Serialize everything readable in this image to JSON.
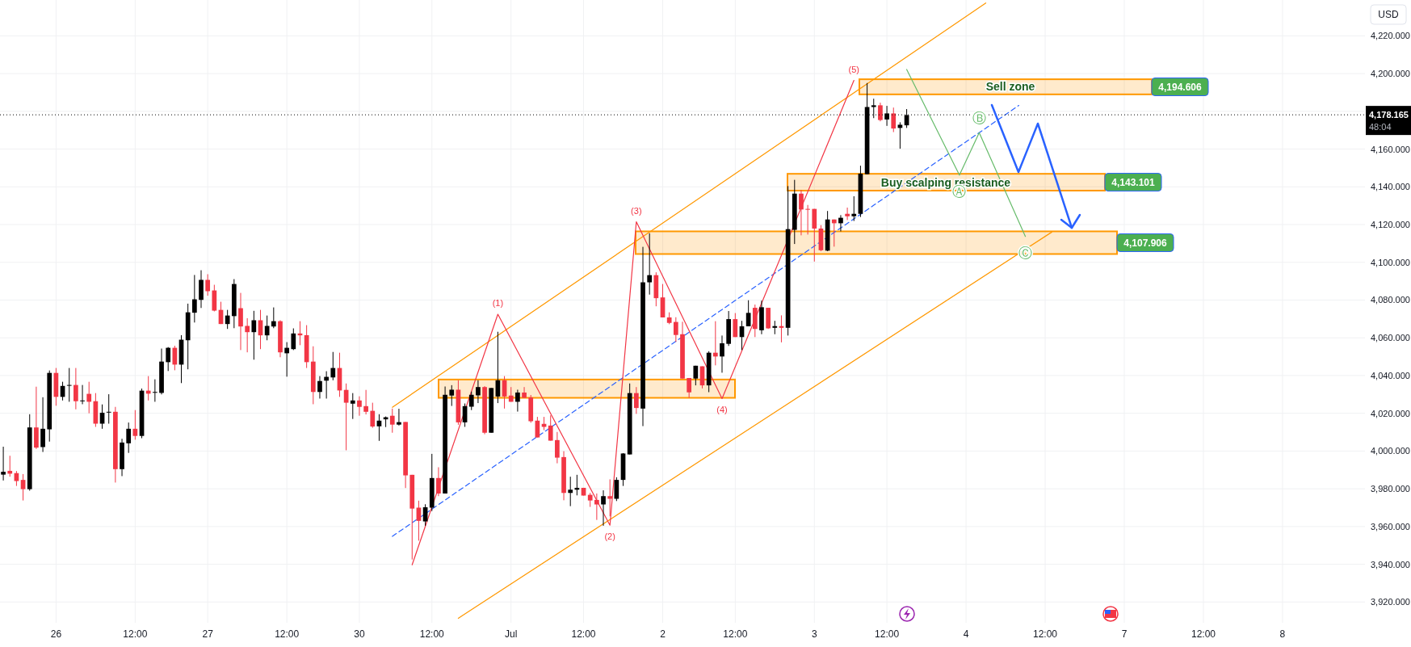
{
  "chart_data": {
    "type": "candlestick",
    "categories": [
      null,
      null,
      null,
      null,
      null,
      null,
      null,
      null,
      "26",
      null,
      null,
      null,
      null,
      null,
      null,
      null,
      null,
      null,
      null,
      null,
      "12:00",
      null,
      null,
      null,
      null,
      null,
      null,
      null,
      null,
      null,
      null,
      "27",
      null,
      null,
      null,
      null,
      null,
      null,
      null,
      null,
      null,
      null,
      null,
      "12:00",
      null,
      null,
      null,
      null,
      null,
      null,
      null,
      null,
      null,
      null,
      "30",
      null,
      null,
      null,
      null,
      null,
      null,
      null,
      null,
      null,
      null,
      "12:00",
      null,
      null,
      null,
      null,
      null,
      null,
      null,
      null,
      null,
      null,
      null,
      "Jul",
      null,
      null,
      null,
      null,
      null,
      null,
      null,
      null,
      null,
      null,
      "12:00",
      null,
      null,
      null,
      null,
      null,
      null,
      null,
      null,
      null,
      null,
      null,
      "2",
      null,
      null,
      null,
      null,
      null,
      null,
      null,
      null,
      null,
      null,
      "12:00",
      null,
      null,
      null,
      null,
      null,
      null,
      null,
      null,
      null,
      null,
      null,
      "3",
      null,
      null,
      null,
      null,
      null,
      null,
      null,
      null,
      null,
      null,
      "12:00",
      null,
      null,
      null,
      null,
      null,
      null,
      null,
      null,
      null,
      null,
      null,
      "4",
      null,
      null,
      null,
      null,
      null,
      null,
      null,
      null,
      null,
      null,
      null,
      "12:00",
      null,
      null,
      null,
      null,
      null,
      null,
      null,
      null,
      null,
      null,
      null,
      "7",
      null,
      null,
      null,
      null,
      null,
      null,
      null,
      null,
      null,
      null,
      null,
      "12:00",
      null,
      null,
      null,
      null,
      null,
      null,
      null,
      null,
      null,
      null,
      null,
      "8",
      null,
      null,
      null,
      null,
      null,
      null,
      null,
      null,
      null,
      null,
      null,
      null
    ],
    "ohlc": [
      [
        3987.5,
        4002.3,
        3984.4,
        3989.0
      ],
      [
        3989.5,
        3997.5,
        3986.4,
        3988.0
      ],
      [
        3988.3,
        3989.4,
        3981.5,
        3984.1
      ],
      [
        3984.7,
        3987.8,
        3973.8,
        3979.8
      ],
      [
        3979.8,
        4019.5,
        3979.0,
        4012.5
      ],
      [
        4012.5,
        4034.1,
        4001.1,
        4001.8
      ],
      [
        4002.1,
        4028.5,
        3999.5,
        4011.8
      ],
      [
        4011.5,
        4042.7,
        4005.0,
        4041.4
      ],
      [
        4041.4,
        4044.0,
        4024.0,
        4028.7
      ],
      [
        4028.7,
        4036.7,
        4026.8,
        4034.5
      ],
      [
        4034.7,
        4044.0,
        4026.1,
        4035.0
      ],
      [
        4035.0,
        4044.0,
        4022.1,
        4026.4
      ],
      [
        4026.6,
        4035.0,
        4024.8,
        4026.8
      ],
      [
        4030.3,
        4036.7,
        4020.0,
        4026.1
      ],
      [
        4026.4,
        4030.7,
        4012.8,
        4014.5
      ],
      [
        4014.5,
        4024.7,
        4011.8,
        4020.3
      ],
      [
        4020.6,
        4030.1,
        4014.5,
        4020.8
      ],
      [
        4020.8,
        4023.4,
        3983.3,
        3990.4
      ],
      [
        3990.4,
        4006.5,
        3986.7,
        4004.5
      ],
      [
        4004.1,
        4015.1,
        3999.0,
        4011.8
      ],
      [
        4011.8,
        4021.7,
        4006.0,
        4008.0
      ],
      [
        4008.0,
        4033.1,
        4006.8,
        4032.0
      ],
      [
        4032.0,
        4039.7,
        4026.8,
        4030.4
      ],
      [
        4031.0,
        4038.0,
        4026.1,
        4031.3
      ],
      [
        4030.8,
        4054.3,
        4030.0,
        4047.4
      ],
      [
        4047.1,
        4055.1,
        4042.4,
        4054.7
      ],
      [
        4054.7,
        4055.8,
        4042.8,
        4045.8
      ],
      [
        4045.8,
        4061.4,
        4036.0,
        4059.0
      ],
      [
        4058.7,
        4078.1,
        4043.3,
        4073.5
      ],
      [
        4073.3,
        4093.3,
        4068.1,
        4080.4
      ],
      [
        4080.1,
        4095.8,
        4075.8,
        4090.7
      ],
      [
        4090.7,
        4093.7,
        4082.3,
        4084.7
      ],
      [
        4085.1,
        4088.1,
        4074.0,
        4074.4
      ],
      [
        4074.8,
        4079.1,
        4067.3,
        4067.3
      ],
      [
        4067.3,
        4074.8,
        4064.7,
        4071.8
      ],
      [
        4071.5,
        4091.1,
        4065.1,
        4088.5
      ],
      [
        4075.7,
        4083.8,
        4053.5,
        4066.0
      ],
      [
        4066.3,
        4070.4,
        4052.3,
        4063.0
      ],
      [
        4063.0,
        4074.3,
        4048.4,
        4069.3
      ],
      [
        4069.3,
        4074.8,
        4054.0,
        4061.3
      ],
      [
        4061.3,
        4071.8,
        4058.7,
        4066.3
      ],
      [
        4066.0,
        4076.1,
        4065.1,
        4068.8
      ],
      [
        4068.8,
        4069.3,
        4049.7,
        4052.3
      ],
      [
        4051.8,
        4057.7,
        4039.4,
        4054.7
      ],
      [
        4054.0,
        4065.0,
        4053.5,
        4062.3
      ],
      [
        4062.3,
        4068.8,
        4056.1,
        4061.3
      ],
      [
        4061.4,
        4066.7,
        4044.0,
        4047.1
      ],
      [
        4047.4,
        4055.5,
        4024.8,
        4031.3
      ],
      [
        4031.3,
        4039.7,
        4027.8,
        4037.1
      ],
      [
        4037.3,
        4042.3,
        4027.8,
        4039.3
      ],
      [
        4039.0,
        4052.5,
        4037.5,
        4044.0
      ],
      [
        4044.0,
        4052.1,
        4028.7,
        4032.1
      ],
      [
        4032.4,
        4035.8,
        4000.4,
        4025.6
      ],
      [
        4025.1,
        4030.7,
        4017.0,
        4026.8
      ],
      [
        4026.8,
        4029.0,
        4018.7,
        4023.4
      ],
      [
        4023.8,
        4032.4,
        4019.4,
        4020.8
      ],
      [
        4021.3,
        4025.6,
        4012.3,
        4013.0
      ],
      [
        4013.1,
        4019.5,
        4005.4,
        4016.1
      ],
      [
        4016.8,
        4018.3,
        4012.7,
        4017.9
      ],
      [
        4018.7,
        4022.5,
        4009.7,
        4014.0
      ],
      [
        4014.0,
        4022.4,
        4013.5,
        4015.3
      ],
      [
        4015.4,
        4015.4,
        3980.4,
        3987.1
      ],
      [
        3987.4,
        3987.4,
        3942.5,
        3969.5
      ],
      [
        3970.0,
        3973.7,
        3952.5,
        3963.0
      ],
      [
        3962.7,
        3971.8,
        3960.4,
        3970.2
      ],
      [
        3970.0,
        3998.5,
        3968.2,
        3985.7
      ],
      [
        3985.7,
        3991.4,
        3976.1,
        3977.5
      ],
      [
        3977.5,
        4034.2,
        3977.5,
        4029.8
      ],
      [
        4029.4,
        4034.9,
        4023.9,
        4032.5
      ],
      [
        4032.5,
        4037.5,
        4013.9,
        4015.2
      ],
      [
        4015.2,
        4025.2,
        4012.8,
        4023.8
      ],
      [
        4023.5,
        4031.5,
        4021.7,
        4029.8
      ],
      [
        4029.5,
        4037.5,
        4025.4,
        4033.9
      ],
      [
        4033.9,
        4034.4,
        4008.9,
        4009.7
      ],
      [
        4009.7,
        4033.4,
        4009.7,
        4033.4
      ],
      [
        4028.9,
        4063.2,
        4025.4,
        4037.5
      ],
      [
        4037.5,
        4039.7,
        4022.5,
        4028.9
      ],
      [
        4029.4,
        4033.9,
        4026.1,
        4026.1
      ],
      [
        4026.1,
        4032.5,
        4020.9,
        4031.0
      ],
      [
        4031.0,
        4033.9,
        4028.2,
        4028.2
      ],
      [
        4028.4,
        4029.7,
        4015.0,
        4015.8
      ],
      [
        4016.1,
        4018.1,
        4007.2,
        4007.2
      ],
      [
        4014.4,
        4018.1,
        4011.1,
        4012.8
      ],
      [
        4013.5,
        4018.9,
        4005.5,
        4005.5
      ],
      [
        4005.8,
        4010.1,
        3993.5,
        3996.5
      ],
      [
        3996.8,
        3999.9,
        3973.9,
        3977.8
      ],
      [
        3977.8,
        3986.4,
        3970.8,
        3979.5
      ],
      [
        3979.5,
        3987.4,
        3976.5,
        3980.5
      ],
      [
        3980.5,
        3980.5,
        3976.4,
        3976.4
      ],
      [
        3976.8,
        3977.8,
        3970.4,
        3973.8
      ],
      [
        3974.1,
        3977.5,
        3963.5,
        3971.7
      ],
      [
        3971.7,
        3979.2,
        3960.4,
        3976.1
      ],
      [
        3976.1,
        3985.0,
        3965.4,
        3974.7
      ],
      [
        3974.7,
        3986.1,
        3973.5,
        3984.7
      ],
      [
        3984.7,
        3998.9,
        3981.5,
        3998.7
      ],
      [
        3998.2,
        4035.8,
        3998.2,
        4030.7
      ],
      [
        4030.7,
        4033.9,
        4019.7,
        4022.8
      ],
      [
        4022.5,
        4108.2,
        4013.2,
        4089.4
      ],
      [
        4089.4,
        4115.4,
        4082.9,
        4093.2
      ],
      [
        4093.2,
        4094.7,
        4076.7,
        4081.0
      ],
      [
        4081.4,
        4088.5,
        4070.8,
        4070.8
      ],
      [
        4070.8,
        4073.5,
        4067.2,
        4067.9
      ],
      [
        4068.4,
        4070.9,
        4057.8,
        4061.5
      ],
      [
        4061.9,
        4068.5,
        4038.4,
        4038.4
      ],
      [
        4038.7,
        4038.7,
        4028.2,
        4031.1
      ],
      [
        4038.4,
        4045.2,
        4034.8,
        4045.2
      ],
      [
        4044.9,
        4044.9,
        4033.2,
        4034.8
      ],
      [
        4034.8,
        4052.9,
        4031.2,
        4052.1
      ],
      [
        4052.1,
        4068.8,
        4045.4,
        4050.1
      ],
      [
        4050.1,
        4061.2,
        4041.5,
        4057.1
      ],
      [
        4056.8,
        4074.2,
        4055.7,
        4069.9
      ],
      [
        4069.9,
        4073.1,
        4060.4,
        4060.4
      ],
      [
        4060.4,
        4069.0,
        4053.5,
        4066.1
      ],
      [
        4066.1,
        4079.9,
        4066.1,
        4073.2
      ],
      [
        4075.9,
        4077.6,
        4060.4,
        4064.7
      ],
      [
        4064.0,
        4079.7,
        4061.9,
        4076.2
      ],
      [
        4075.9,
        4075.9,
        4064.7,
        4065.0
      ],
      [
        4065.3,
        4069.0,
        4061.9,
        4066.2
      ],
      [
        4066.2,
        4071.9,
        4057.6,
        4065.3
      ],
      [
        4065.3,
        4140.4,
        4061.2,
        4117.6
      ],
      [
        4117.2,
        4143.7,
        4109.7,
        4136.4
      ],
      [
        4136.4,
        4138.3,
        4114.3,
        4128.0
      ],
      [
        4128.3,
        4130.4,
        4114.7,
        4128.0
      ],
      [
        4128.3,
        4128.3,
        4100.4,
        4117.9
      ],
      [
        4117.9,
        4119.7,
        4105.9,
        4106.4
      ],
      [
        4106.2,
        4127.2,
        4105.9,
        4122.7
      ],
      [
        4122.7,
        4122.7,
        4108.3,
        4120.7
      ],
      [
        4120.7,
        4125.0,
        4116.4,
        4123.6
      ],
      [
        4125.7,
        4129.0,
        4122.4,
        4124.4
      ],
      [
        4124.4,
        4135.0,
        4121.9,
        4125.7
      ],
      [
        4125.7,
        4151.2,
        4124.0,
        4147.0
      ],
      [
        4146.7,
        4195.0,
        4146.7,
        4182.3
      ],
      [
        4182.3,
        4186.7,
        4176.4,
        4183.2
      ],
      [
        4183.2,
        4184.6,
        4174.7,
        4175.4
      ],
      [
        4175.7,
        4182.9,
        4172.3,
        4178.9
      ],
      [
        4178.9,
        4182.0,
        4169.0,
        4170.9
      ],
      [
        4171.2,
        4174.2,
        4160.2,
        4172.9
      ],
      [
        4172.6,
        4181.2,
        4171.2,
        4178.0
      ],
      null,
      null,
      null,
      null,
      null,
      null,
      null,
      null,
      null,
      null,
      null,
      null,
      null,
      null,
      null,
      null,
      null,
      null,
      null,
      null,
      null,
      null,
      null,
      null,
      null,
      null,
      null,
      null,
      null,
      null,
      null,
      null,
      null,
      null,
      null,
      null,
      null,
      null,
      null,
      null,
      null,
      null,
      null,
      null,
      null,
      null,
      null,
      null,
      null,
      null,
      null,
      null,
      null,
      null,
      null,
      null,
      null,
      null,
      null,
      null,
      null,
      null,
      null,
      null,
      null,
      null,
      null,
      null,
      null
    ],
    "ylim": [
      3909,
      4239
    ],
    "yticks": [
      {
        "value": 3920,
        "label": "3,920.000"
      },
      {
        "value": 3940,
        "label": "3,940.000"
      },
      {
        "value": 3960,
        "label": "3,960.000"
      },
      {
        "value": 3980,
        "label": "3,980.000"
      },
      {
        "value": 4000,
        "label": "4,000.000"
      },
      {
        "value": 4020,
        "label": "4,020.000"
      },
      {
        "value": 4040,
        "label": "4,040.000"
      },
      {
        "value": 4060,
        "label": "4,060.000"
      },
      {
        "value": 4080,
        "label": "4,080.000"
      },
      {
        "value": 4100,
        "label": "4,100.000"
      },
      {
        "value": 4120,
        "label": "4,120.000"
      },
      {
        "value": 4140,
        "label": "4,140.000"
      },
      {
        "value": 4160,
        "label": "4,160.000"
      },
      {
        "value": 4180,
        "label": null
      },
      {
        "value": 4200,
        "label": "4,200.000"
      },
      {
        "value": 4220,
        "label": "4,220.000"
      }
    ],
    "grid": true,
    "series": [
      {
        "type": "line",
        "color": "#ff9800",
        "values": [
          null,
          null,
          null,
          null,
          null,
          null,
          null,
          null,
          null,
          null,
          null,
          null,
          null,
          null,
          null,
          null,
          null,
          null,
          null,
          null,
          null,
          null,
          null,
          null,
          null,
          null,
          null,
          null,
          null,
          null,
          null,
          null,
          null,
          null,
          null,
          null,
          null,
          null,
          null,
          null,
          null,
          null,
          null,
          null,
          null,
          null,
          null,
          null,
          null,
          null,
          null,
          null,
          null,
          null,
          null,
          null,
          null,
          null,
          null,
          4023.2,
          null,
          null,
          null,
          null,
          null,
          null,
          null,
          null,
          null,
          null,
          null,
          null,
          null,
          null,
          null,
          null,
          null,
          null,
          null,
          null,
          null,
          null,
          null,
          null,
          null,
          null,
          null,
          null,
          null,
          null,
          null,
          null,
          null,
          null,
          null,
          null,
          null,
          null,
          null,
          null,
          null,
          null,
          null,
          null,
          null,
          null,
          null,
          null,
          null,
          null,
          null,
          null,
          null,
          null,
          null,
          null,
          null,
          null,
          null,
          null,
          null,
          null,
          null,
          null,
          null,
          null,
          null,
          null,
          null,
          null,
          null,
          null,
          null,
          null,
          null,
          null,
          null,
          null,
          null,
          null,
          null,
          null,
          null,
          null,
          null,
          null,
          null,
          null,
          null,
          4237.4,
          null,
          null,
          null,
          null,
          null,
          null,
          null,
          null,
          null,
          null,
          null,
          null,
          null,
          null,
          null,
          null,
          null,
          null,
          null,
          null,
          null,
          null,
          null,
          null,
          null,
          null,
          null,
          null,
          null,
          null,
          null,
          null,
          null,
          null,
          null,
          null,
          null,
          null,
          null,
          null,
          null,
          null,
          null,
          null,
          null,
          null,
          null,
          null,
          null,
          null,
          null,
          null,
          null,
          null,
          null,
          null,
          null
        ]
      },
      {
        "type": "line",
        "color": "#ff9800",
        "values": [
          null,
          null,
          null,
          null,
          null,
          null,
          null,
          null,
          null,
          null,
          null,
          null,
          null,
          null,
          null,
          null,
          null,
          null,
          null,
          null,
          null,
          null,
          null,
          null,
          null,
          null,
          null,
          null,
          null,
          null,
          null,
          null,
          null,
          null,
          null,
          null,
          null,
          null,
          null,
          null,
          null,
          null,
          null,
          null,
          null,
          null,
          null,
          null,
          null,
          null,
          null,
          null,
          null,
          null,
          null,
          null,
          null,
          null,
          null,
          null,
          null,
          null,
          null,
          null,
          null,
          null,
          null,
          null,
          null,
          3911.4,
          null,
          null,
          null,
          null,
          null,
          null,
          null,
          null,
          null,
          null,
          null,
          null,
          null,
          null,
          null,
          null,
          null,
          null,
          null,
          null,
          null,
          null,
          null,
          null,
          null,
          null,
          null,
          null,
          null,
          null,
          null,
          null,
          null,
          null,
          null,
          null,
          null,
          null,
          null,
          null,
          null,
          null,
          null,
          null,
          null,
          null,
          null,
          null,
          null,
          null,
          null,
          null,
          null,
          null,
          null,
          null,
          null,
          null,
          null,
          null,
          null,
          null,
          null,
          null,
          null,
          null,
          null,
          null,
          null,
          null,
          null,
          null,
          null,
          null,
          null,
          null,
          null,
          null,
          null,
          null,
          null,
          null,
          null,
          null,
          null,
          null,
          null,
          null,
          null,
          4116,
          null,
          null,
          null,
          null,
          null,
          null,
          null,
          null,
          null,
          null,
          null,
          null,
          null,
          null,
          null,
          null,
          null,
          null,
          null,
          null,
          null,
          null,
          null,
          null,
          null,
          null,
          null,
          null,
          null,
          null,
          null,
          null,
          null,
          null,
          null,
          null,
          null,
          null,
          null,
          null,
          null,
          null,
          null,
          null,
          null,
          null,
          null
        ]
      },
      {
        "type": "line",
        "color": "#2962ff",
        "line_style": "dashed",
        "values": [
          null,
          null,
          null,
          null,
          null,
          null,
          null,
          null,
          null,
          null,
          null,
          null,
          null,
          null,
          null,
          null,
          null,
          null,
          null,
          null,
          null,
          null,
          null,
          null,
          null,
          null,
          null,
          null,
          null,
          null,
          null,
          null,
          null,
          null,
          null,
          null,
          null,
          null,
          null,
          null,
          null,
          null,
          null,
          null,
          null,
          null,
          null,
          null,
          null,
          null,
          null,
          null,
          null,
          null,
          null,
          null,
          null,
          null,
          null,
          3954.8,
          null,
          null,
          null,
          null,
          null,
          null,
          null,
          null,
          null,
          null,
          null,
          null,
          null,
          null,
          null,
          null,
          null,
          null,
          null,
          null,
          null,
          null,
          null,
          null,
          null,
          null,
          null,
          null,
          null,
          null,
          null,
          null,
          null,
          null,
          null,
          null,
          null,
          null,
          null,
          null,
          null,
          null,
          null,
          null,
          null,
          null,
          null,
          null,
          null,
          null,
          null,
          null,
          null,
          null,
          null,
          null,
          null,
          null,
          null,
          null,
          null,
          null,
          null,
          null,
          null,
          null,
          null,
          null,
          null,
          null,
          null,
          null,
          null,
          null,
          null,
          null,
          null,
          null,
          null,
          null,
          null,
          null,
          null,
          null,
          null,
          null,
          null,
          null,
          null,
          null,
          null,
          null,
          null,
          null,
          4183.1,
          null,
          null,
          null,
          null,
          null,
          null,
          null,
          null,
          null,
          null,
          null,
          null,
          null,
          null,
          null,
          null,
          null,
          null,
          null,
          null,
          null,
          null,
          null,
          null,
          null,
          null,
          null,
          null,
          null,
          null,
          null,
          null,
          null,
          null,
          null,
          null,
          null,
          null,
          null,
          null,
          null,
          null,
          null,
          null,
          null,
          null,
          null,
          null,
          null,
          null,
          null,
          null
        ]
      },
      {
        "type": "line",
        "color": "#f23645",
        "values": [
          null,
          null,
          null,
          null,
          null,
          null,
          null,
          null,
          null,
          null,
          null,
          null,
          null,
          null,
          null,
          null,
          null,
          null,
          null,
          null,
          null,
          null,
          null,
          null,
          null,
          null,
          null,
          null,
          null,
          null,
          null,
          null,
          null,
          null,
          null,
          null,
          null,
          null,
          null,
          null,
          null,
          null,
          null,
          null,
          null,
          null,
          null,
          null,
          null,
          null,
          null,
          null,
          null,
          null,
          null,
          null,
          null,
          null,
          null,
          null,
          null,
          null,
          3939.7,
          null,
          null,
          null,
          null,
          null,
          null,
          null,
          null,
          null,
          null,
          null,
          null,
          4072.5,
          null,
          null,
          null,
          null,
          null,
          null,
          null,
          null,
          null,
          null,
          null,
          null,
          null,
          null,
          null,
          null,
          3960.7,
          null,
          null,
          null,
          4121.5,
          null,
          null,
          null,
          null,
          null,
          null,
          null,
          null,
          null,
          null,
          null,
          null,
          4027.8,
          null,
          null,
          null,
          null,
          null,
          null,
          null,
          null,
          null,
          null,
          null,
          null,
          null,
          null,
          null,
          null,
          null,
          null,
          null,
          4196.4,
          null,
          null,
          null,
          null,
          null,
          null,
          null,
          null,
          null,
          null,
          null,
          null,
          null,
          null,
          null,
          null,
          null,
          null,
          null,
          null,
          null,
          null,
          null,
          null,
          null,
          null,
          null,
          null,
          null,
          null,
          null,
          null,
          null,
          null,
          null,
          null,
          null,
          null,
          null,
          null,
          null,
          null,
          null,
          null,
          null,
          null,
          null,
          null,
          null,
          null,
          null,
          null,
          null,
          null,
          null,
          null,
          null,
          null,
          null,
          null,
          null,
          null,
          null,
          null,
          null,
          null,
          null,
          null,
          null,
          null,
          null,
          null,
          null,
          null,
          null,
          null,
          null
        ]
      },
      {
        "type": "line",
        "color": "#66bb6a",
        "values": [
          null,
          null,
          null,
          null,
          null,
          null,
          null,
          null,
          null,
          null,
          null,
          null,
          null,
          null,
          null,
          null,
          null,
          null,
          null,
          null,
          null,
          null,
          null,
          null,
          null,
          null,
          null,
          null,
          null,
          null,
          null,
          null,
          null,
          null,
          null,
          null,
          null,
          null,
          null,
          null,
          null,
          null,
          null,
          null,
          null,
          null,
          null,
          null,
          null,
          null,
          null,
          null,
          null,
          null,
          null,
          null,
          null,
          null,
          null,
          null,
          null,
          null,
          null,
          null,
          null,
          null,
          null,
          null,
          null,
          null,
          null,
          null,
          null,
          null,
          null,
          null,
          null,
          null,
          null,
          null,
          null,
          null,
          null,
          null,
          null,
          null,
          null,
          null,
          null,
          null,
          null,
          null,
          null,
          null,
          null,
          null,
          null,
          null,
          null,
          null,
          null,
          null,
          null,
          null,
          null,
          null,
          null,
          null,
          null,
          null,
          null,
          null,
          null,
          null,
          null,
          null,
          null,
          null,
          null,
          null,
          null,
          null,
          null,
          null,
          null,
          null,
          null,
          null,
          null,
          null,
          null,
          null,
          null,
          null,
          null,
          null,
          null,
          4202.2,
          null,
          null,
          null,
          null,
          null,
          null,
          null,
          4146.2,
          null,
          null,
          4168.7,
          null,
          null,
          null,
          null,
          null,
          null,
          4113.7,
          null,
          null,
          null,
          null,
          null,
          null,
          null,
          null,
          null,
          null,
          null,
          null,
          null,
          null,
          null,
          null,
          null,
          null,
          null,
          null,
          null,
          null,
          null,
          null,
          null,
          null,
          null,
          null,
          null,
          null,
          null,
          null,
          null,
          null,
          null,
          null,
          null,
          null,
          null,
          null,
          null,
          null,
          null,
          null,
          null,
          null,
          null,
          null,
          null,
          null,
          null
        ]
      }
    ],
    "bands": [
      {
        "axis": "y",
        "from": 4189,
        "to": 4197,
        "color": "#ff9800",
        "label": "Sell zone"
      },
      {
        "axis": "y",
        "from": 4138,
        "to": 4146.9,
        "color": "#ff9800",
        "label": "Buy scalping resistance"
      },
      {
        "axis": "y",
        "from": 4104.4,
        "to": 4116.4,
        "color": "#ff9800"
      },
      {
        "axis": "y",
        "from": 4028.2,
        "to": 4037.9,
        "color": "#ff9800"
      }
    ],
    "ref_lines": [
      {
        "axis": "y",
        "value": 4178.165,
        "label": "4,178.165",
        "color": "#000000",
        "line_style": "dotted"
      }
    ],
    "annotations": [
      "(1)",
      "(2)",
      "(3)",
      "(4)",
      "(5)",
      "Ⓐ",
      "Ⓑ",
      "Ⓒ",
      "4,194.606",
      "4,143.101",
      "4,107.906",
      "USD",
      "48:04"
    ]
  }
}
